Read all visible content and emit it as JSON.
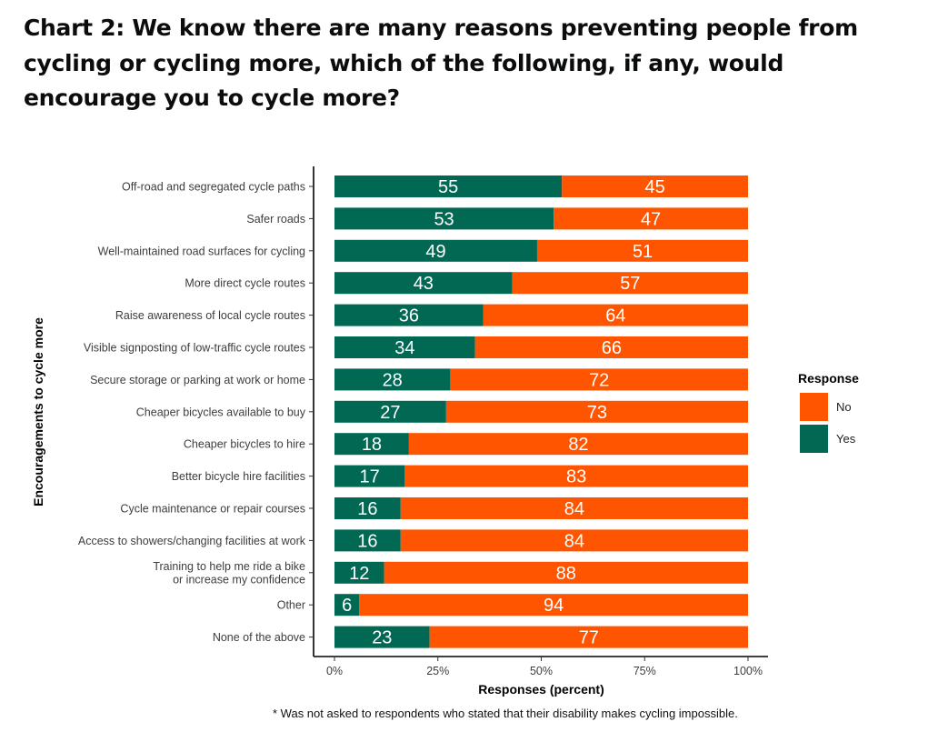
{
  "page_title": "Chart 2: We know there are many reasons preventing people from cycling or cycling more, which of the following, if any, would encourage you to cycle more?",
  "footnote": "* Was not asked to respondents who stated that their disability makes cycling impossible.",
  "chart_data": {
    "type": "bar",
    "orientation": "horizontal",
    "stacked": true,
    "title": "",
    "xlabel": "Responses (percent)",
    "ylabel": "Encouragements to cycle more",
    "xlim": [
      0,
      100
    ],
    "x_ticks": [
      "0%",
      "25%",
      "50%",
      "75%",
      "100%"
    ],
    "categories": [
      [
        "Off-road and segregated cycle paths"
      ],
      [
        "Safer roads"
      ],
      [
        "Well-maintained road surfaces for cycling"
      ],
      [
        "More direct cycle routes"
      ],
      [
        "Raise awareness of local cycle routes"
      ],
      [
        "Visible signposting of low-traffic cycle routes"
      ],
      [
        "Secure storage or parking at work or home"
      ],
      [
        "Cheaper bicycles available to buy"
      ],
      [
        "Cheaper bicycles to hire"
      ],
      [
        "Better bicycle hire facilities"
      ],
      [
        "Cycle maintenance or repair courses"
      ],
      [
        "Access to showers/changing facilities at work"
      ],
      [
        "Training to help me ride a bike",
        "or increase my confidence"
      ],
      [
        "Other"
      ],
      [
        "None of the above"
      ]
    ],
    "series": [
      {
        "name": "Yes",
        "color": "#006853",
        "values": [
          55,
          53,
          49,
          43,
          36,
          34,
          28,
          27,
          18,
          17,
          16,
          16,
          12,
          6,
          23
        ]
      },
      {
        "name": "No",
        "color": "#ff5500",
        "values": [
          45,
          47,
          51,
          57,
          64,
          66,
          72,
          73,
          82,
          83,
          84,
          84,
          88,
          94,
          77
        ]
      }
    ],
    "legend": {
      "title": "Response",
      "position": "right",
      "items": [
        {
          "label": "No",
          "color": "#ff5500"
        },
        {
          "label": "Yes",
          "color": "#006853"
        }
      ]
    },
    "grid": false
  }
}
